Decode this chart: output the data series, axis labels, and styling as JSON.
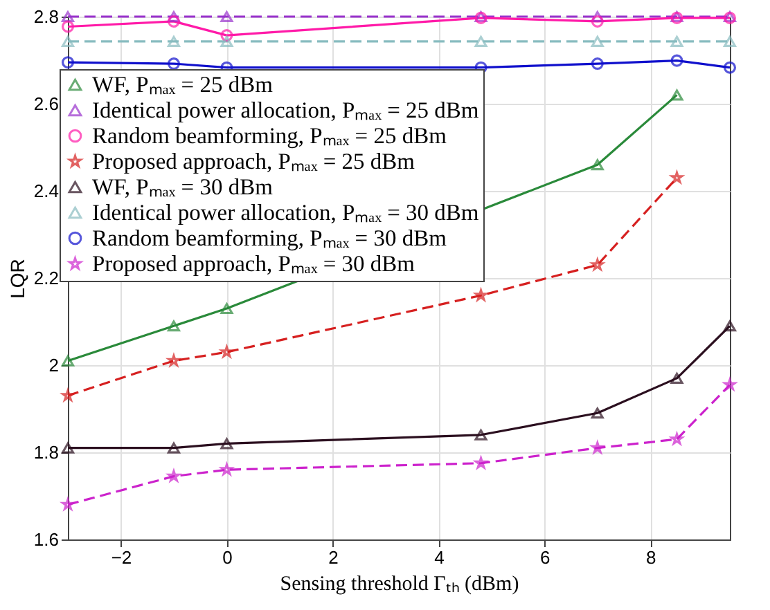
{
  "chart_data": {
    "type": "line",
    "xlabel": "Sensing threshold Γₜₕ (dBm)",
    "ylabel": "LQR",
    "x": [
      -3,
      -1,
      0,
      4.8,
      7,
      8.5,
      9.5
    ],
    "xlim": [
      -3,
      9.5
    ],
    "xticks": [
      -2,
      0,
      2,
      4,
      6,
      8
    ],
    "ylim": [
      1.6,
      2.8
    ],
    "yticks": [
      1.6,
      1.8,
      2,
      2.2,
      2.4,
      2.6,
      2.8
    ],
    "grid": true,
    "legend": "top left",
    "series": [
      {
        "name": "WF, Pₘₐₓ = 25 dBm",
        "color": "#2a8a3a",
        "marker": "triangle",
        "line_style": "solid",
        "values": [
          2.01,
          2.09,
          2.13,
          null,
          2.46,
          2.62,
          null
        ]
      },
      {
        "name": "Identical power allocation, Pₘₐₓ = 25 dBm",
        "color": "#9933cc",
        "marker": "triangle",
        "line_style": "dashed",
        "values": [
          2.8,
          2.8,
          2.8,
          2.8,
          2.8,
          2.8,
          2.8
        ]
      },
      {
        "name": "Random beamforming, Pₘₐₓ = 25 dBm",
        "color": "#ff1aa8",
        "marker": "circle",
        "line_style": "solid",
        "values": [
          2.777,
          2.789,
          2.757,
          2.797,
          2.789,
          2.797,
          2.797
        ]
      },
      {
        "name": "Proposed approach, Pₘₐₓ = 25 dBm",
        "color": "#d62020",
        "marker": "star",
        "line_style": "dashed",
        "values": [
          1.93,
          2.01,
          2.03,
          2.16,
          2.23,
          2.43,
          null
        ]
      },
      {
        "name": "WF, Pₘₐₓ = 30 dBm",
        "color": "#2b0f1f",
        "marker": "triangle",
        "line_style": "solid",
        "values": [
          1.81,
          1.81,
          1.82,
          1.84,
          1.89,
          1.97,
          2.09
        ]
      },
      {
        "name": "Identical power allocation, Pₘₐₓ = 30 dBm",
        "color": "#88bcc0",
        "marker": "triangle",
        "line_style": "dashed",
        "values": [
          2.743,
          2.743,
          2.743,
          2.743,
          2.743,
          2.743,
          2.743
        ]
      },
      {
        "name": "Random beamforming, Pₘₐₓ = 30 dBm",
        "color": "#1010cc",
        "marker": "circle",
        "line_style": "solid",
        "values": [
          2.695,
          2.692,
          2.683,
          2.683,
          2.692,
          2.699,
          2.683
        ]
      },
      {
        "name": "Proposed approach, Pₘₐₓ = 30 dBm",
        "color": "#cc22cc",
        "marker": "star",
        "line_style": "dashed",
        "values": [
          1.68,
          1.745,
          1.76,
          1.775,
          1.81,
          1.83,
          1.955
        ]
      }
    ]
  }
}
